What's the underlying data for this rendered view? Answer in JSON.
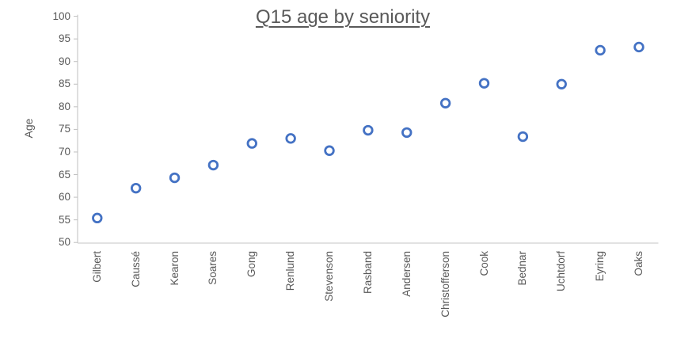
{
  "chart_data": {
    "type": "scatter",
    "title": "Q15 age by seniority",
    "xlabel": "",
    "ylabel": "Age",
    "categories": [
      "Gilbert",
      "Caussé",
      "Kearon",
      "Soares",
      "Gong",
      "Renlund",
      "Stevenson",
      "Rasband",
      "Andersen",
      "Christofferson",
      "Cook",
      "Bednar",
      "Uchtdorf",
      "Eyring",
      "Oaks"
    ],
    "values": [
      55.4,
      62.0,
      64.3,
      67.1,
      71.9,
      73.0,
      70.3,
      74.8,
      74.3,
      80.8,
      85.2,
      73.4,
      85.0,
      92.5,
      93.2
    ],
    "ylim": [
      50,
      100
    ],
    "ytick_step": 5,
    "ytick_labels": [
      "50",
      "55",
      "60",
      "65",
      "70",
      "75",
      "80",
      "85",
      "90",
      "95",
      "100"
    ],
    "grid": false,
    "legend": false,
    "marker_style": "hollow-circle"
  },
  "colors": {
    "marker": "#4472C4",
    "text": "#595959",
    "y_axis_line": "#BFBFBF",
    "x_axis_line": "#D9D9D9"
  }
}
